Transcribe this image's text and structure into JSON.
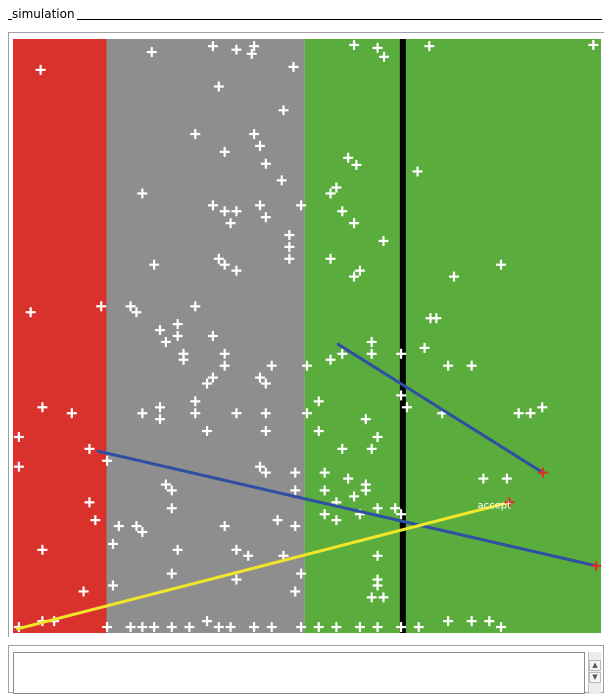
{
  "window": {
    "title": "simulation"
  },
  "simulation": {
    "zones": [
      {
        "name": "reject-zone",
        "color": "#d9312b",
        "x_from": 0.0,
        "x_to": 0.159
      },
      {
        "name": "neutral-zone",
        "color": "#8e8e8e",
        "x_from": 0.159,
        "x_to": 0.496
      },
      {
        "name": "accept-zone",
        "color": "#5aad3c",
        "x_from": 0.496,
        "x_to": 1.0
      }
    ],
    "threshold_x": 0.663,
    "threshold_color": "#000000",
    "marker_color": "#ffffff",
    "highlight_marker_color": "#d9312b",
    "trajectories": [
      {
        "name": "trajectory-blue-short",
        "color": "#2f4fa3",
        "from": [
          0.553,
          0.514
        ],
        "to": [
          0.901,
          0.73
        ]
      },
      {
        "name": "trajectory-blue-long",
        "color": "#2f4fa3",
        "from": [
          0.145,
          0.694
        ],
        "to": [
          0.992,
          0.887
        ]
      },
      {
        "name": "trajectory-yellow",
        "color": "#f2e62a",
        "from": [
          0.008,
          0.993
        ],
        "to": [
          0.844,
          0.78
        ]
      }
    ],
    "accept_label": "accept",
    "highlight_points": [
      [
        0.901,
        0.73
      ],
      [
        0.992,
        0.887
      ],
      [
        0.844,
        0.78
      ]
    ],
    "points": [
      [
        0.047,
        0.052
      ],
      [
        0.236,
        0.022
      ],
      [
        0.34,
        0.012
      ],
      [
        0.38,
        0.018
      ],
      [
        0.41,
        0.012
      ],
      [
        0.406,
        0.025
      ],
      [
        0.477,
        0.047
      ],
      [
        0.58,
        0.01
      ],
      [
        0.62,
        0.015
      ],
      [
        0.631,
        0.03
      ],
      [
        0.708,
        0.012
      ],
      [
        0.987,
        0.01
      ],
      [
        0.35,
        0.08
      ],
      [
        0.46,
        0.12
      ],
      [
        0.31,
        0.16
      ],
      [
        0.41,
        0.16
      ],
      [
        0.42,
        0.18
      ],
      [
        0.36,
        0.19
      ],
      [
        0.43,
        0.21
      ],
      [
        0.57,
        0.2
      ],
      [
        0.584,
        0.212
      ],
      [
        0.688,
        0.223
      ],
      [
        0.457,
        0.238
      ],
      [
        0.22,
        0.26
      ],
      [
        0.34,
        0.28
      ],
      [
        0.36,
        0.29
      ],
      [
        0.38,
        0.29
      ],
      [
        0.42,
        0.28
      ],
      [
        0.49,
        0.28
      ],
      [
        0.54,
        0.26
      ],
      [
        0.55,
        0.25
      ],
      [
        0.56,
        0.29
      ],
      [
        0.43,
        0.3
      ],
      [
        0.37,
        0.31
      ],
      [
        0.47,
        0.33
      ],
      [
        0.47,
        0.35
      ],
      [
        0.58,
        0.31
      ],
      [
        0.63,
        0.34
      ],
      [
        0.24,
        0.38
      ],
      [
        0.35,
        0.37
      ],
      [
        0.36,
        0.38
      ],
      [
        0.38,
        0.39
      ],
      [
        0.47,
        0.37
      ],
      [
        0.54,
        0.37
      ],
      [
        0.59,
        0.39
      ],
      [
        0.58,
        0.4
      ],
      [
        0.75,
        0.4
      ],
      [
        0.83,
        0.38
      ],
      [
        0.03,
        0.46
      ],
      [
        0.15,
        0.45
      ],
      [
        0.2,
        0.45
      ],
      [
        0.21,
        0.46
      ],
      [
        0.31,
        0.45
      ],
      [
        0.25,
        0.49
      ],
      [
        0.28,
        0.48
      ],
      [
        0.28,
        0.5
      ],
      [
        0.29,
        0.53
      ],
      [
        0.26,
        0.51
      ],
      [
        0.29,
        0.54
      ],
      [
        0.34,
        0.5
      ],
      [
        0.36,
        0.53
      ],
      [
        0.36,
        0.55
      ],
      [
        0.44,
        0.55
      ],
      [
        0.42,
        0.57
      ],
      [
        0.43,
        0.58
      ],
      [
        0.33,
        0.58
      ],
      [
        0.34,
        0.57
      ],
      [
        0.5,
        0.55
      ],
      [
        0.54,
        0.54
      ],
      [
        0.56,
        0.53
      ],
      [
        0.61,
        0.51
      ],
      [
        0.61,
        0.53
      ],
      [
        0.66,
        0.53
      ],
      [
        0.7,
        0.52
      ],
      [
        0.74,
        0.55
      ],
      [
        0.78,
        0.55
      ],
      [
        0.71,
        0.47
      ],
      [
        0.72,
        0.47
      ],
      [
        0.05,
        0.62
      ],
      [
        0.1,
        0.63
      ],
      [
        0.22,
        0.63
      ],
      [
        0.25,
        0.62
      ],
      [
        0.25,
        0.64
      ],
      [
        0.31,
        0.61
      ],
      [
        0.31,
        0.63
      ],
      [
        0.33,
        0.66
      ],
      [
        0.38,
        0.63
      ],
      [
        0.43,
        0.63
      ],
      [
        0.43,
        0.66
      ],
      [
        0.5,
        0.63
      ],
      [
        0.52,
        0.61
      ],
      [
        0.52,
        0.66
      ],
      [
        0.6,
        0.64
      ],
      [
        0.62,
        0.67
      ],
      [
        0.56,
        0.69
      ],
      [
        0.61,
        0.69
      ],
      [
        0.66,
        0.6
      ],
      [
        0.67,
        0.62
      ],
      [
        0.73,
        0.63
      ],
      [
        0.86,
        0.63
      ],
      [
        0.88,
        0.63
      ],
      [
        0.9,
        0.62
      ],
      [
        0.01,
        0.67
      ],
      [
        0.01,
        0.72
      ],
      [
        0.13,
        0.69
      ],
      [
        0.16,
        0.71
      ],
      [
        0.26,
        0.75
      ],
      [
        0.27,
        0.76
      ],
      [
        0.42,
        0.72
      ],
      [
        0.43,
        0.73
      ],
      [
        0.48,
        0.73
      ],
      [
        0.48,
        0.76
      ],
      [
        0.53,
        0.73
      ],
      [
        0.53,
        0.76
      ],
      [
        0.55,
        0.78
      ],
      [
        0.57,
        0.74
      ],
      [
        0.58,
        0.77
      ],
      [
        0.6,
        0.76
      ],
      [
        0.6,
        0.75
      ],
      [
        0.66,
        0.8
      ],
      [
        0.8,
        0.74
      ],
      [
        0.84,
        0.74
      ],
      [
        0.13,
        0.78
      ],
      [
        0.14,
        0.81
      ],
      [
        0.18,
        0.82
      ],
      [
        0.21,
        0.82
      ],
      [
        0.22,
        0.83
      ],
      [
        0.27,
        0.79
      ],
      [
        0.36,
        0.82
      ],
      [
        0.45,
        0.81
      ],
      [
        0.48,
        0.82
      ],
      [
        0.53,
        0.8
      ],
      [
        0.55,
        0.81
      ],
      [
        0.59,
        0.8
      ],
      [
        0.62,
        0.79
      ],
      [
        0.65,
        0.79
      ],
      [
        0.05,
        0.86
      ],
      [
        0.17,
        0.85
      ],
      [
        0.28,
        0.86
      ],
      [
        0.38,
        0.86
      ],
      [
        0.4,
        0.87
      ],
      [
        0.46,
        0.87
      ],
      [
        0.49,
        0.9
      ],
      [
        0.62,
        0.87
      ],
      [
        0.62,
        0.91
      ],
      [
        0.62,
        0.92
      ],
      [
        0.12,
        0.93
      ],
      [
        0.17,
        0.92
      ],
      [
        0.27,
        0.9
      ],
      [
        0.38,
        0.91
      ],
      [
        0.48,
        0.93
      ],
      [
        0.61,
        0.94
      ],
      [
        0.63,
        0.94
      ],
      [
        0.01,
        0.99
      ],
      [
        0.05,
        0.98
      ],
      [
        0.07,
        0.98
      ],
      [
        0.16,
        0.99
      ],
      [
        0.2,
        0.99
      ],
      [
        0.22,
        0.99
      ],
      [
        0.24,
        0.99
      ],
      [
        0.27,
        0.99
      ],
      [
        0.3,
        0.99
      ],
      [
        0.33,
        0.98
      ],
      [
        0.35,
        0.99
      ],
      [
        0.37,
        0.99
      ],
      [
        0.41,
        0.99
      ],
      [
        0.44,
        0.99
      ],
      [
        0.49,
        0.99
      ],
      [
        0.52,
        0.99
      ],
      [
        0.55,
        0.99
      ],
      [
        0.59,
        0.99
      ],
      [
        0.62,
        0.99
      ],
      [
        0.66,
        0.99
      ],
      [
        0.69,
        0.99
      ],
      [
        0.74,
        0.98
      ],
      [
        0.78,
        0.98
      ],
      [
        0.81,
        0.98
      ],
      [
        0.83,
        0.99
      ]
    ]
  },
  "output": {
    "text": ""
  },
  "icons": {
    "scroll_up": "chevron-up-icon",
    "scroll_down": "chevron-down-icon"
  }
}
